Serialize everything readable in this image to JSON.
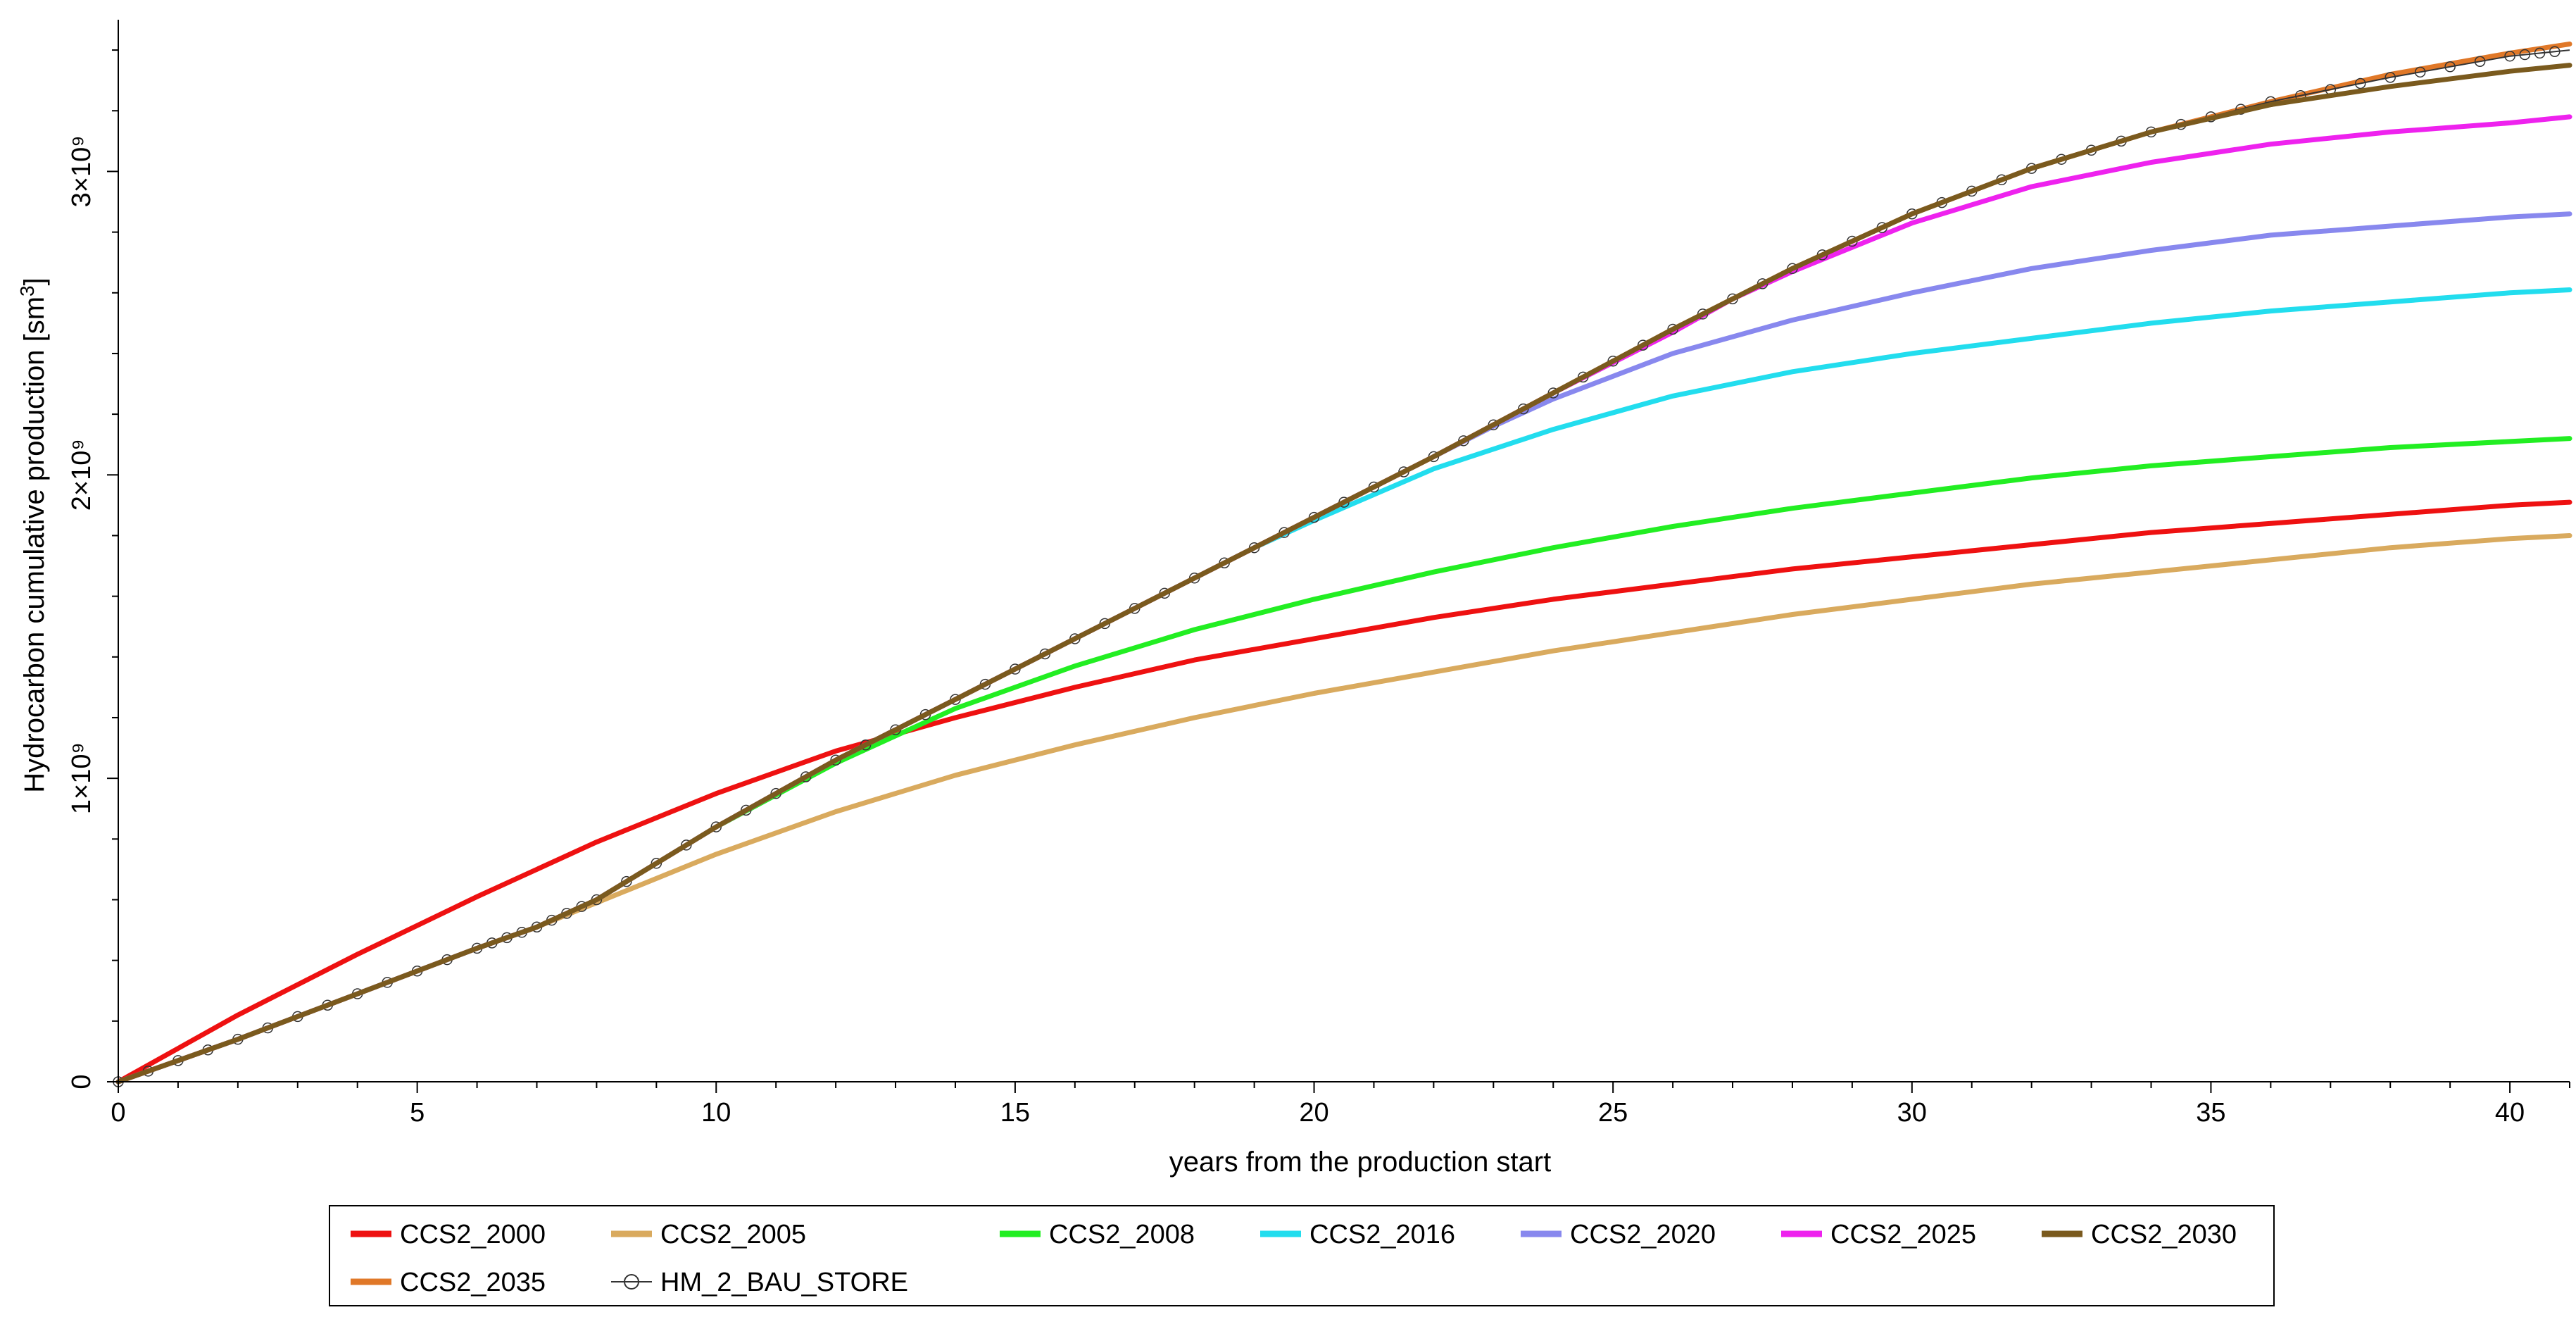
{
  "chart_data": {
    "type": "line",
    "xlabel": "years from the production start",
    "ylabel": "Hydrocarbon cumulative production [sm3]",
    "xlim": [
      0,
      41
    ],
    "ylim": [
      0,
      3500000000
    ],
    "x_ticks": [
      0,
      5,
      10,
      15,
      20,
      25,
      30,
      35,
      40
    ],
    "x_tick_labels": [
      "0",
      "5",
      "10",
      "15",
      "20",
      "25",
      "30",
      "35",
      "40"
    ],
    "y_ticks": [
      0,
      1000000000,
      2000000000,
      3000000000
    ],
    "y_tick_labels": [
      "0",
      "1×10⁹",
      "2×10⁹",
      "3×10⁹"
    ],
    "grid": false,
    "legend_position": "bottom",
    "series": [
      {
        "name": "CCS2_2000",
        "color": "#ee1111",
        "x": [
          0,
          2,
          4,
          6,
          8,
          10,
          12,
          14,
          16,
          18,
          20,
          22,
          24,
          26,
          28,
          30,
          32,
          34,
          36,
          38,
          40,
          41
        ],
        "y": [
          0,
          220000000,
          420000000,
          610000000,
          790000000,
          950000000,
          1090000000,
          1200000000,
          1300000000,
          1390000000,
          1460000000,
          1530000000,
          1590000000,
          1640000000,
          1690000000,
          1730000000,
          1770000000,
          1810000000,
          1840000000,
          1870000000,
          1900000000,
          1910000000
        ]
      },
      {
        "name": "CCS2_2005",
        "color": "#d9aa5e",
        "x": [
          0,
          2,
          4,
          6,
          7,
          8,
          10,
          12,
          14,
          16,
          18,
          20,
          22,
          24,
          26,
          28,
          30,
          32,
          34,
          36,
          38,
          40,
          41
        ],
        "y": [
          0,
          140000000,
          290000000,
          440000000,
          510000000,
          590000000,
          750000000,
          890000000,
          1010000000,
          1110000000,
          1200000000,
          1280000000,
          1350000000,
          1420000000,
          1480000000,
          1540000000,
          1590000000,
          1640000000,
          1680000000,
          1720000000,
          1760000000,
          1790000000,
          1800000000
        ]
      },
      {
        "name": "CCS2_2008",
        "color": "#22ee22",
        "x": [
          0,
          2,
          4,
          6,
          7,
          8,
          10,
          12,
          14,
          16,
          18,
          20,
          22,
          24,
          26,
          28,
          30,
          32,
          34,
          36,
          38,
          40,
          41
        ],
        "y": [
          0,
          140000000,
          290000000,
          440000000,
          510000000,
          600000000,
          840000000,
          1050000000,
          1230000000,
          1370000000,
          1490000000,
          1590000000,
          1680000000,
          1760000000,
          1830000000,
          1890000000,
          1940000000,
          1990000000,
          2030000000,
          2060000000,
          2090000000,
          2110000000,
          2120000000
        ]
      },
      {
        "name": "CCS2_2016",
        "color": "#22ddee",
        "x": [
          0,
          2,
          4,
          6,
          7,
          8,
          10,
          12,
          14,
          16,
          18,
          19,
          20,
          22,
          24,
          26,
          28,
          30,
          32,
          34,
          36,
          38,
          40,
          41
        ],
        "y": [
          0,
          140000000,
          290000000,
          440000000,
          510000000,
          600000000,
          840000000,
          1060000000,
          1260000000,
          1460000000,
          1660000000,
          1760000000,
          1850000000,
          2020000000,
          2150000000,
          2260000000,
          2340000000,
          2400000000,
          2450000000,
          2500000000,
          2540000000,
          2570000000,
          2600000000,
          2610000000
        ]
      },
      {
        "name": "CCS2_2020",
        "color": "#8888ee",
        "x": [
          0,
          2,
          4,
          6,
          7,
          8,
          10,
          12,
          14,
          16,
          18,
          20,
          22,
          23,
          24,
          26,
          28,
          30,
          32,
          34,
          36,
          38,
          40,
          41
        ],
        "y": [
          0,
          140000000,
          290000000,
          440000000,
          510000000,
          600000000,
          840000000,
          1060000000,
          1260000000,
          1460000000,
          1660000000,
          1860000000,
          2060000000,
          2160000000,
          2250000000,
          2400000000,
          2510000000,
          2600000000,
          2680000000,
          2740000000,
          2790000000,
          2820000000,
          2850000000,
          2860000000
        ]
      },
      {
        "name": "CCS2_2025",
        "color": "#ee22ee",
        "x": [
          0,
          2,
          4,
          6,
          7,
          8,
          10,
          12,
          14,
          16,
          18,
          20,
          22,
          24,
          26,
          27,
          28,
          30,
          32,
          34,
          36,
          38,
          40,
          41
        ],
        "y": [
          0,
          140000000,
          290000000,
          440000000,
          510000000,
          600000000,
          840000000,
          1060000000,
          1260000000,
          1460000000,
          1660000000,
          1860000000,
          2060000000,
          2270000000,
          2470000000,
          2580000000,
          2670000000,
          2830000000,
          2950000000,
          3030000000,
          3090000000,
          3130000000,
          3160000000,
          3180000000
        ]
      },
      {
        "name": "CCS2_2030",
        "color": "#7a5a1e",
        "x": [
          0,
          2,
          4,
          6,
          7,
          8,
          10,
          12,
          14,
          16,
          18,
          20,
          22,
          24,
          26,
          28,
          30,
          32,
          34,
          36,
          38,
          40,
          41
        ],
        "y": [
          0,
          140000000,
          290000000,
          440000000,
          510000000,
          600000000,
          840000000,
          1060000000,
          1260000000,
          1460000000,
          1660000000,
          1860000000,
          2060000000,
          2270000000,
          2480000000,
          2680000000,
          2860000000,
          3010000000,
          3130000000,
          3220000000,
          3280000000,
          3330000000,
          3350000000
        ]
      },
      {
        "name": "CCS2_2035",
        "color": "#e07828",
        "x": [
          0,
          2,
          4,
          6,
          7,
          8,
          10,
          12,
          14,
          16,
          18,
          20,
          22,
          24,
          26,
          28,
          30,
          32,
          34,
          36,
          38,
          40,
          41
        ],
        "y": [
          0,
          140000000,
          290000000,
          440000000,
          510000000,
          600000000,
          840000000,
          1060000000,
          1260000000,
          1460000000,
          1660000000,
          1860000000,
          2060000000,
          2270000000,
          2480000000,
          2680000000,
          2860000000,
          3010000000,
          3130000000,
          3230000000,
          3320000000,
          3390000000,
          3420000000
        ]
      },
      {
        "name": "HM_2_BAU_STORE",
        "color": "#333333",
        "marker": "circle",
        "x": [
          0,
          2,
          4,
          6,
          7,
          8,
          10,
          12,
          14,
          16,
          18,
          20,
          22,
          24,
          26,
          28,
          30,
          32,
          34,
          36,
          38,
          40,
          41
        ],
        "y": [
          0,
          140000000,
          290000000,
          440000000,
          510000000,
          600000000,
          840000000,
          1060000000,
          1260000000,
          1460000000,
          1660000000,
          1860000000,
          2060000000,
          2270000000,
          2480000000,
          2680000000,
          2860000000,
          3010000000,
          3130000000,
          3230000000,
          3310000000,
          3380000000,
          3400000000
        ]
      }
    ]
  }
}
